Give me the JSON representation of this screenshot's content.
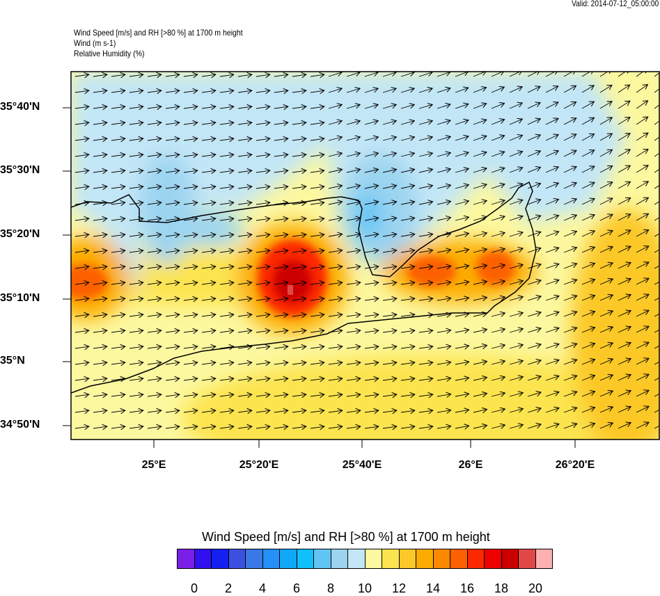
{
  "valid": "Valid: 2014-07-12_05:00:00",
  "header": {
    "line1": "Wind Speed [m/s] and RH [>80 %] at 1700 m height",
    "line2": "Wind   (m s-1)",
    "line3": "Relative Humidity   (%)"
  },
  "chart_data": {
    "type": "heatmap",
    "title": "Wind Speed [m/s] and RH [>80 %] at 1700 m height",
    "x_ticks": [
      "25°E",
      "25°20'E",
      "25°40'E",
      "26°E",
      "26°20'E"
    ],
    "y_ticks": [
      "35°40'N",
      "35°30'N",
      "35°20'N",
      "35°10'N",
      "35°N",
      "34°50'N"
    ],
    "colorbar": {
      "title": "Wind Speed [m/s] and RH [>80 %] at 1700 m height",
      "labels": [
        "0",
        "2",
        "4",
        "6",
        "8",
        "10",
        "12",
        "14",
        "16",
        "18",
        "20"
      ],
      "colors": [
        "#7A1FE8",
        "#3110F0",
        "#1420F0",
        "#3C50E0",
        "#3A78E6",
        "#2490F8",
        "#12A8F8",
        "#10C0FC",
        "#60C4F4",
        "#9CD4F0",
        "#C2E6F6",
        "#FCF8A0",
        "#FCE450",
        "#FCC828",
        "#FCAC00",
        "#FC8800",
        "#FC6000",
        "#FC2800",
        "#EC0000",
        "#CC0000",
        "#E04848",
        "#FCB0B0"
      ]
    },
    "wind_direction": "west-southwest to east-northeast",
    "max_wind_speed_approx": 19
  }
}
